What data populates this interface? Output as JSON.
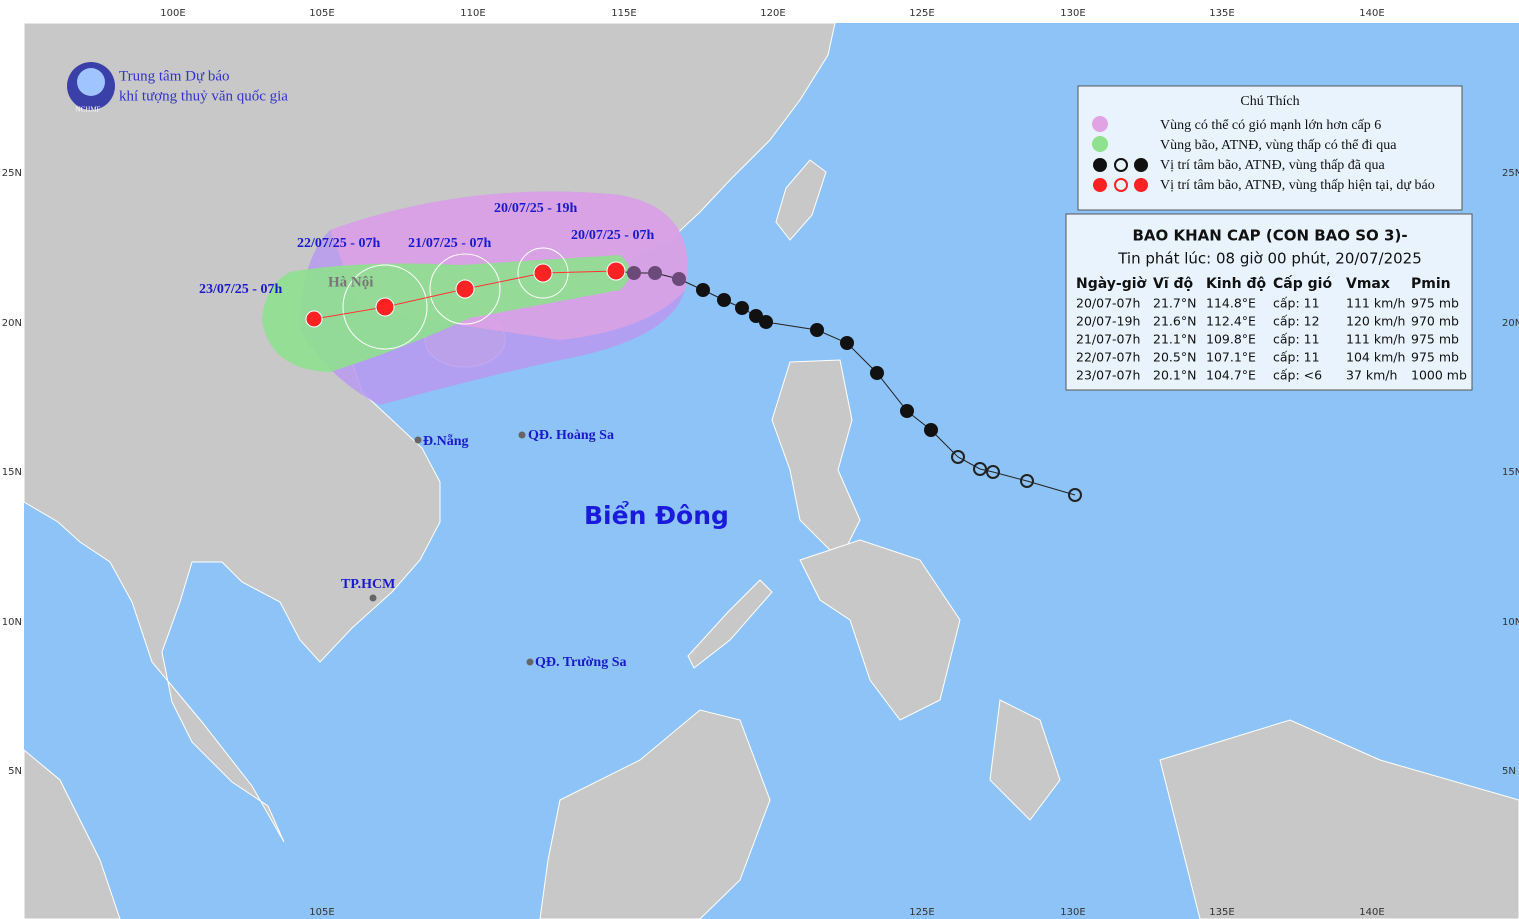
{
  "header": {
    "org_line1": "Trung tâm Dự báo",
    "org_line2": "khí tượng thuỷ văn quốc gia",
    "logo": "NCHMF"
  },
  "lon_labels_top": [
    "100E",
    "105E",
    "110E",
    "115E",
    "120E",
    "125E",
    "130E",
    "135E",
    "140E"
  ],
  "lon_labels_bottom": [
    "105E",
    "125E",
    "130E",
    "135E",
    "140E"
  ],
  "lat_labels": [
    "25N",
    "20N",
    "15N",
    "10N",
    "5N"
  ],
  "legend": {
    "title": "Chú Thích",
    "items": [
      "Vùng có thể có gió mạnh lớn hơn cấp 6",
      "Vùng bão, ATNĐ, vùng thấp có thể đi qua",
      "Vị trí tâm bão, ATNĐ, vùng thấp đã qua",
      "Vị trí tâm bão, ATNĐ, vùng thấp hiện tại, dự báo"
    ]
  },
  "bulletin": {
    "title": "BAO KHAN CAP (CON BAO SO 3)-",
    "subtitle": "Tin phát lúc: 08 giờ 00 phút, 20/07/2025",
    "headers": [
      "Ngày-giờ",
      "Vĩ độ",
      "Kinh độ",
      "Cấp gió",
      "Vmax",
      "Pmin"
    ],
    "rows": [
      [
        "20/07-07h",
        "21.7°N",
        "114.8°E",
        "cấp: 11",
        "111 km/h",
        "975 mb"
      ],
      [
        "20/07-19h",
        "21.6°N",
        "112.4°E",
        "cấp: 12",
        "120 km/h",
        "970 mb"
      ],
      [
        "21/07-07h",
        "21.1°N",
        "109.8°E",
        "cấp: 11",
        "111 km/h",
        "975 mb"
      ],
      [
        "22/07-07h",
        "20.5°N",
        "107.1°E",
        "cấp: 11",
        "104 km/h",
        "975 mb"
      ],
      [
        "23/07-07h",
        "20.1°N",
        "104.7°E",
        "cấp: <6",
        "37 km/h",
        "1000 mb"
      ]
    ]
  },
  "map_labels": [
    "20/07/25 - 19h",
    "20/07/25 - 07h",
    "21/07/25 - 07h",
    "22/07/25 - 07h",
    "23/07/25 - 07h",
    "Hà Nội",
    "Đ.Nẵng",
    "QĐ. Hoàng Sa",
    "Biển Đông",
    "TP.HCM",
    "QĐ. Trường Sa"
  ]
}
